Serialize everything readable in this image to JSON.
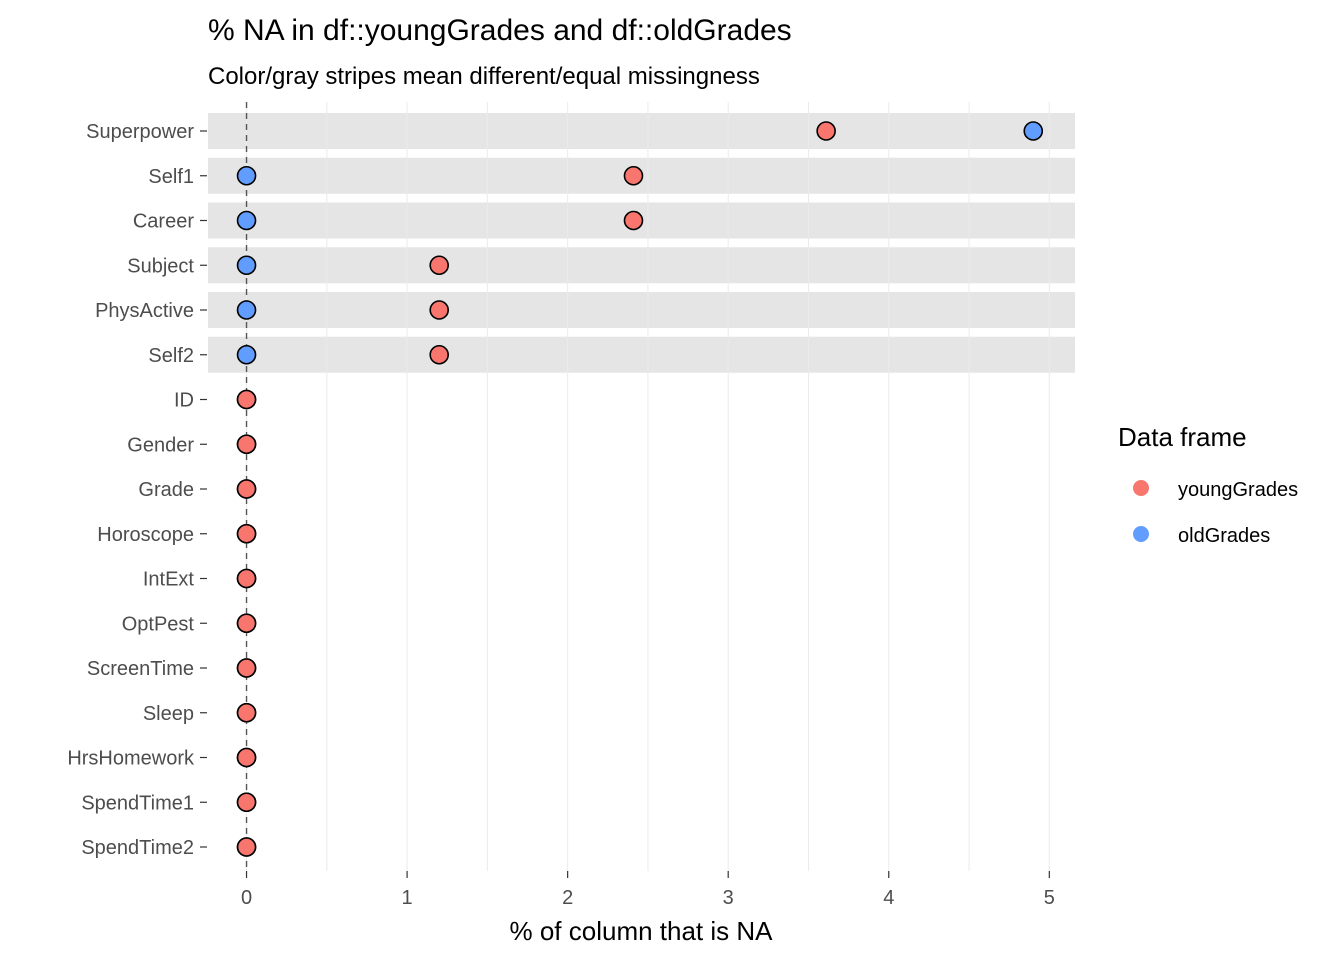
{
  "chart_data": {
    "type": "scatter",
    "title": "% NA in df::youngGrades and df::oldGrades",
    "subtitle": "Color/gray stripes mean different/equal missingness",
    "xlabel": "% of column that is NA",
    "ylabel": "",
    "xlim": [
      -0.24,
      5.16
    ],
    "xticks": [
      0,
      1,
      2,
      3,
      4,
      5
    ],
    "grid": true,
    "legend": {
      "title": "Data frame",
      "position": "right",
      "entries": [
        {
          "name": "youngGrades",
          "color": "#F8766D"
        },
        {
          "name": "oldGrades",
          "color": "#619CFF"
        }
      ]
    },
    "reference_line": {
      "x": 0,
      "style": "dashed"
    },
    "categories": [
      "Superpower",
      "Self1",
      "Career",
      "Subject",
      "PhysActive",
      "Self2",
      "ID",
      "Gender",
      "Grade",
      "Horoscope",
      "IntExt",
      "OptPest",
      "ScreenTime",
      "Sleep",
      "HrsHomework",
      "SpendTime1",
      "SpendTime2"
    ],
    "highlighted": [
      true,
      true,
      true,
      true,
      true,
      true,
      false,
      false,
      false,
      false,
      false,
      false,
      false,
      false,
      false,
      false,
      false
    ],
    "series": [
      {
        "name": "youngGrades",
        "color": "#F8766D",
        "values": [
          3.61,
          2.41,
          2.41,
          1.2,
          1.2,
          1.2,
          0,
          0,
          0,
          0,
          0,
          0,
          0,
          0,
          0,
          0,
          0
        ]
      },
      {
        "name": "oldGrades",
        "color": "#619CFF",
        "values": [
          4.9,
          0,
          0,
          0,
          0,
          0,
          0,
          0,
          0,
          0,
          0,
          0,
          0,
          0,
          0,
          0,
          0
        ]
      }
    ],
    "colors": {
      "stripe": "#e5e5e5",
      "grid": "#ebebeb",
      "tick_text": "#4d4d4d"
    }
  }
}
